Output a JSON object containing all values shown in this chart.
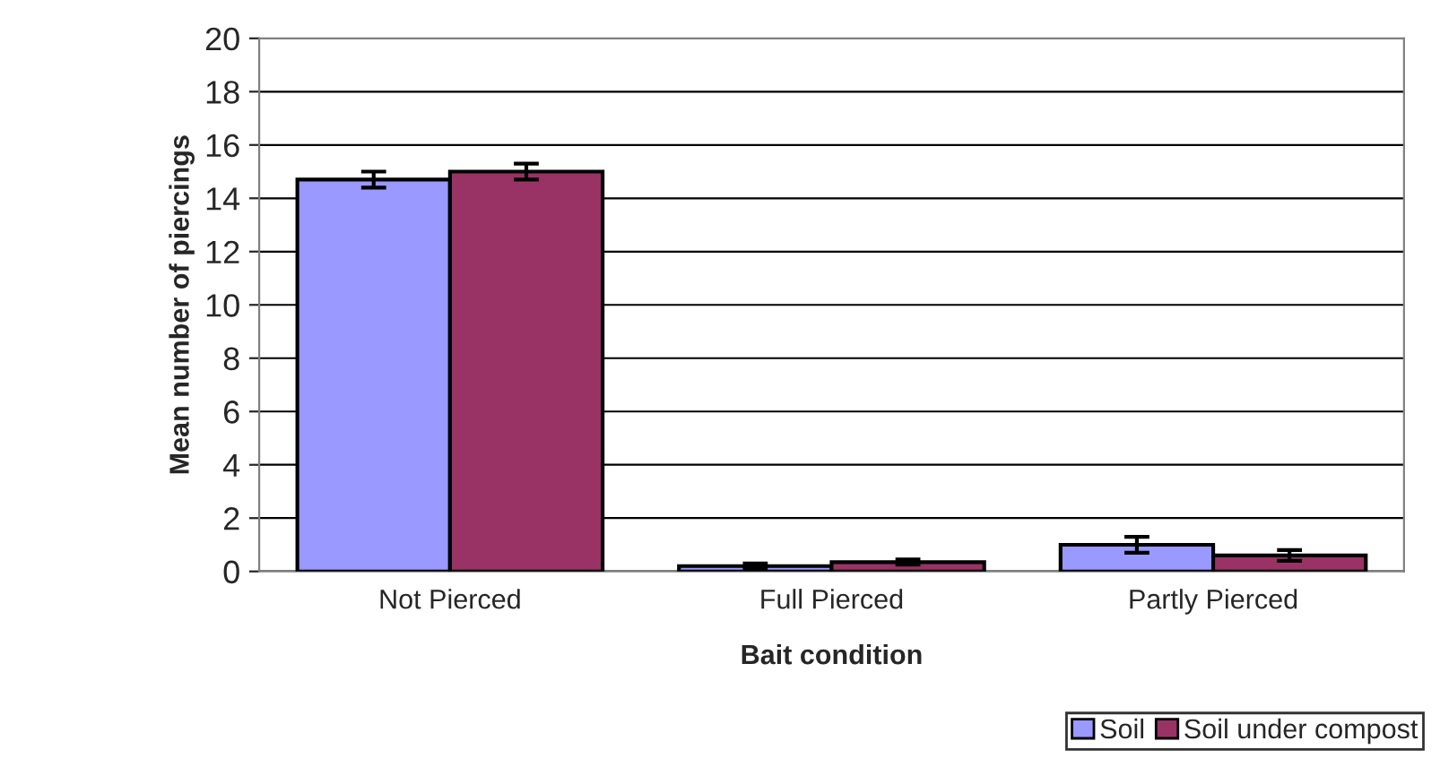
{
  "chart_data": {
    "type": "bar",
    "xlabel": "Bait condition",
    "ylabel": "Mean number of piercings",
    "categories": [
      "Not Pierced",
      "Full Pierced",
      "Partly Pierced"
    ],
    "series": [
      {
        "name": "Soil",
        "color": "#9999ff",
        "values": [
          14.7,
          0.2,
          1.0
        ],
        "errors": [
          0.3,
          0.1,
          0.3
        ]
      },
      {
        "name": "Soil under compost",
        "color": "#993366",
        "values": [
          15.0,
          0.35,
          0.6
        ],
        "errors": [
          0.3,
          0.1,
          0.2
        ]
      }
    ],
    "ylim": [
      0,
      20
    ],
    "yticks": [
      0,
      2,
      4,
      6,
      8,
      10,
      12,
      14,
      16,
      18,
      20
    ],
    "grid": "y",
    "legend": "bottom right"
  }
}
